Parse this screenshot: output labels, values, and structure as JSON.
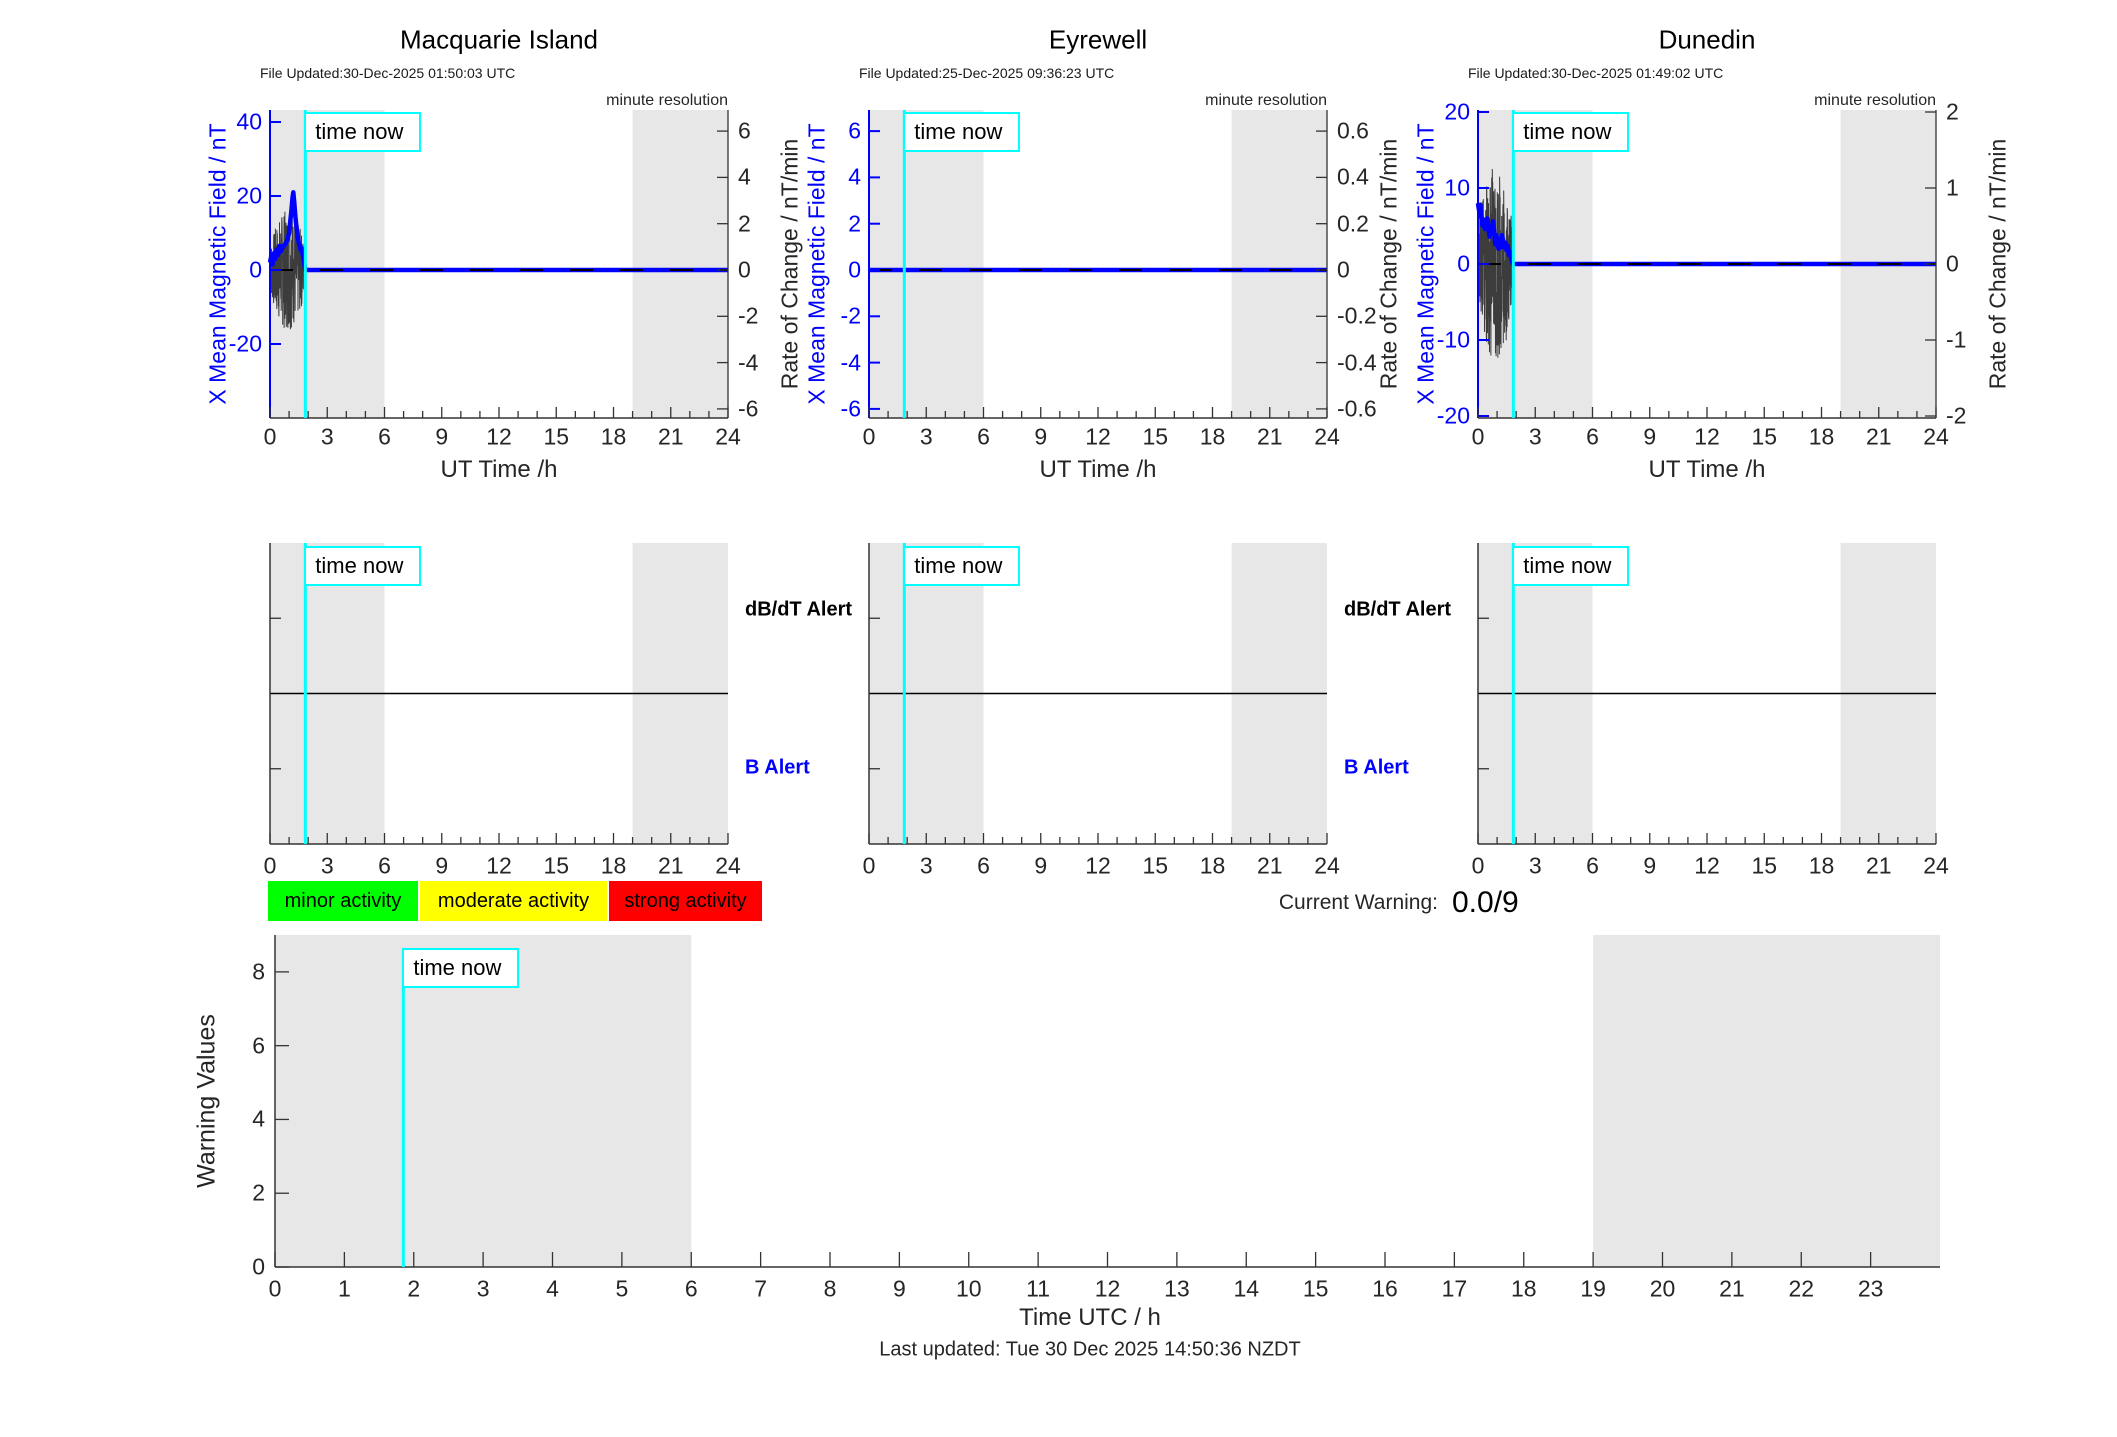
{
  "time_now": {
    "label": "time now",
    "hour": 1.85
  },
  "colors": {
    "accent_blue": "#0000ff",
    "cyan": "#00ffff",
    "band_gray": "#e7e7e7",
    "noise_gray": "#3c3c3c",
    "tick_text": "#262626",
    "black": "#000000",
    "minor_green": "#00ff00",
    "moderate_yellow": "#ffff00",
    "strong_red": "#ff0000"
  },
  "stations": [
    {
      "title": "Macquarie Island",
      "file_updated": "File Updated:30-Dec-2025 01:50:03 UTC",
      "resolution_note": "minute resolution",
      "left_axis": {
        "label": "X Mean Magnetic Field / nT",
        "ticks": [
          40,
          20,
          0,
          -20
        ]
      },
      "right_axis": {
        "label": "Rate of Change / nT/min",
        "ticks": [
          6,
          4,
          2,
          0,
          -2,
          -4,
          -6
        ]
      },
      "x_axis": {
        "label": "UT Time /h",
        "ticks": [
          0,
          3,
          6,
          9,
          12,
          15,
          18,
          21,
          24
        ]
      }
    },
    {
      "title": "Eyrewell",
      "file_updated": "File Updated:25-Dec-2025 09:36:23 UTC",
      "resolution_note": "minute resolution",
      "left_axis": {
        "label": "X Mean Magnetic Field / nT",
        "ticks": [
          6,
          4,
          2,
          0,
          -2,
          -4,
          -6
        ]
      },
      "right_axis": {
        "label": "Rate of Change / nT/min",
        "ticks": [
          0.6,
          0.4,
          0.2,
          0,
          -0.2,
          -0.4,
          -0.6
        ]
      },
      "x_axis": {
        "label": "UT Time /h",
        "ticks": [
          0,
          3,
          6,
          9,
          12,
          15,
          18,
          21,
          24
        ]
      }
    },
    {
      "title": "Dunedin",
      "file_updated": "File Updated:30-Dec-2025 01:49:02 UTC",
      "resolution_note": "minute resolution",
      "left_axis": {
        "label": "X Mean Magnetic Field / nT",
        "ticks": [
          20,
          10,
          0,
          -10,
          -20
        ]
      },
      "right_axis": {
        "label": "Rate of Change / nT/min",
        "ticks": [
          2,
          1,
          0,
          -1,
          -2
        ]
      },
      "x_axis": {
        "label": "UT Time /h",
        "ticks": [
          0,
          3,
          6,
          9,
          12,
          15,
          18,
          21,
          24
        ]
      }
    }
  ],
  "alert_row": {
    "db_dt_label": "dB/dT Alert",
    "b_label": "B Alert",
    "x_ticks": [
      0,
      3,
      6,
      9,
      12,
      15,
      18,
      21,
      24
    ]
  },
  "legend": [
    {
      "label": "minor activity",
      "color": "#00ff00"
    },
    {
      "label": "moderate activity",
      "color": "#ffff00"
    },
    {
      "label": "strong activity",
      "color": "#ff0000"
    }
  ],
  "current_warning": {
    "label": "Current Warning:",
    "value": "0.0/9"
  },
  "warning_panel": {
    "ylabel": "Warning Values",
    "xlabel": "Time UTC / h",
    "y_ticks": [
      0,
      2,
      4,
      6,
      8
    ],
    "x_ticks": [
      0,
      1,
      2,
      3,
      4,
      5,
      6,
      7,
      8,
      9,
      10,
      11,
      12,
      13,
      14,
      15,
      16,
      17,
      18,
      19,
      20,
      21,
      22,
      23
    ]
  },
  "footer": {
    "last_updated": "Last updated: Tue 30 Dec 2025 14:50:36 NZDT"
  },
  "chart_data": [
    {
      "id": "macquarie-field",
      "type": "line",
      "title": "Macquarie Island",
      "xlabel": "UT Time /h",
      "ylabel_left": "X Mean Magnetic Field / nT",
      "ylabel_right": "Rate of Change / nT/min",
      "xlim": [
        0,
        24
      ],
      "xticks": [
        0,
        3,
        6,
        9,
        12,
        15,
        18,
        21,
        24
      ],
      "left_ticks": [
        40,
        20,
        0,
        -20
      ],
      "right_ticks": [
        6,
        4,
        2,
        0,
        -2,
        -4,
        -6
      ],
      "shaded_bands": [
        [
          0,
          6
        ],
        [
          19,
          24
        ]
      ],
      "time_now_hour": 1.85,
      "series": [
        {
          "name": "X mean magnetic field (nT)",
          "color": "#0000ff",
          "points": [
            [
              0,
              2
            ],
            [
              0.08,
              4
            ],
            [
              0.13,
              1.5
            ],
            [
              0.2,
              4.5
            ],
            [
              0.28,
              3
            ],
            [
              0.34,
              5.5
            ],
            [
              0.42,
              4
            ],
            [
              0.5,
              6.5
            ],
            [
              0.57,
              5
            ],
            [
              0.64,
              6
            ],
            [
              0.72,
              6.5
            ],
            [
              0.8,
              7
            ],
            [
              0.9,
              8
            ],
            [
              1.0,
              10
            ],
            [
              1.06,
              13
            ],
            [
              1.12,
              16
            ],
            [
              1.18,
              19.5
            ],
            [
              1.22,
              21
            ],
            [
              1.27,
              18.5
            ],
            [
              1.32,
              15
            ],
            [
              1.38,
              12
            ],
            [
              1.44,
              9.5
            ],
            [
              1.5,
              7.5
            ],
            [
              1.56,
              6.5
            ],
            [
              1.6,
              5.5
            ],
            [
              1.66,
              6
            ],
            [
              1.7,
              4.5
            ],
            [
              1.76,
              3
            ],
            [
              1.82,
              1
            ],
            [
              1.85,
              0
            ],
            [
              24,
              0
            ]
          ]
        },
        {
          "name": "rate of change (nT/min)",
          "style": "noise",
          "color": "#3c3c3c",
          "amp_right_units": 2.6,
          "t_end": 1.85
        },
        {
          "name": "zero reference",
          "style": "dashed",
          "value": 0
        }
      ]
    },
    {
      "id": "eyrewell-field",
      "type": "line",
      "title": "Eyrewell",
      "xlabel": "UT Time /h",
      "ylabel_left": "X Mean Magnetic Field / nT",
      "ylabel_right": "Rate of Change / nT/min",
      "xlim": [
        0,
        24
      ],
      "xticks": [
        0,
        3,
        6,
        9,
        12,
        15,
        18,
        21,
        24
      ],
      "left_ticks": [
        6,
        4,
        2,
        0,
        -2,
        -4,
        -6
      ],
      "right_ticks": [
        0.6,
        0.4,
        0.2,
        0,
        -0.2,
        -0.4,
        -0.6
      ],
      "shaded_bands": [
        [
          0,
          6
        ],
        [
          19,
          24
        ]
      ],
      "time_now_hour": 1.85,
      "series": [
        {
          "name": "X mean magnetic field (nT)",
          "color": "#0000ff",
          "points": [
            [
              0,
              0
            ],
            [
              24,
              0
            ]
          ]
        },
        {
          "name": "zero reference",
          "style": "dashed",
          "value": 0
        }
      ]
    },
    {
      "id": "dunedin-field",
      "type": "line",
      "title": "Dunedin",
      "xlabel": "UT Time /h",
      "ylabel_left": "X Mean Magnetic Field / nT",
      "ylabel_right": "Rate of Change / nT/min",
      "xlim": [
        0,
        24
      ],
      "xticks": [
        0,
        3,
        6,
        9,
        12,
        15,
        18,
        21,
        24
      ],
      "left_ticks": [
        20,
        10,
        0,
        -10,
        -20
      ],
      "right_ticks": [
        2,
        1,
        0,
        -1,
        -2
      ],
      "shaded_bands": [
        [
          0,
          6
        ],
        [
          19,
          24
        ]
      ],
      "time_now_hour": 1.85,
      "series": [
        {
          "name": "X mean magnetic field (nT)",
          "color": "#0000ff",
          "points": [
            [
              0,
              8
            ],
            [
              0.06,
              7
            ],
            [
              0.12,
              7.8
            ],
            [
              0.18,
              6
            ],
            [
              0.24,
              5
            ],
            [
              0.3,
              5.8
            ],
            [
              0.36,
              4.6
            ],
            [
              0.42,
              5.4
            ],
            [
              0.48,
              6
            ],
            [
              0.54,
              4.8
            ],
            [
              0.6,
              3.6
            ],
            [
              0.66,
              4.8
            ],
            [
              0.72,
              4
            ],
            [
              0.78,
              5.6
            ],
            [
              0.84,
              4.6
            ],
            [
              0.9,
              2.6
            ],
            [
              0.96,
              3.8
            ],
            [
              1.02,
              3
            ],
            [
              1.08,
              2
            ],
            [
              1.14,
              3.2
            ],
            [
              1.2,
              2.2
            ],
            [
              1.26,
              3.8
            ],
            [
              1.32,
              3
            ],
            [
              1.38,
              2.2
            ],
            [
              1.44,
              2.8
            ],
            [
              1.5,
              1.8
            ],
            [
              1.56,
              2.4
            ],
            [
              1.62,
              1.2
            ],
            [
              1.68,
              1.6
            ],
            [
              1.74,
              0.8
            ],
            [
              1.8,
              0.2
            ],
            [
              1.85,
              0
            ],
            [
              24,
              0
            ]
          ]
        },
        {
          "name": "rate of change (nT/min)",
          "style": "noise",
          "color": "#3c3c3c",
          "amp_right_units": 1.3,
          "t_end": 1.85
        },
        {
          "name": "zero reference",
          "style": "dashed",
          "value": 0
        }
      ]
    },
    {
      "id": "macquarie-alerts",
      "type": "line",
      "xlim": [
        0,
        24
      ],
      "xticks": [
        0,
        3,
        6,
        9,
        12,
        15,
        18,
        21,
        24
      ],
      "shaded_bands": [
        [
          0,
          6
        ],
        [
          19,
          24
        ]
      ],
      "time_now_hour": 1.85,
      "labels": [
        "dB/dT Alert",
        "B Alert"
      ],
      "db_dt_alerts": [],
      "b_alerts": []
    },
    {
      "id": "eyrewell-alerts",
      "type": "line",
      "xlim": [
        0,
        24
      ],
      "xticks": [
        0,
        3,
        6,
        9,
        12,
        15,
        18,
        21,
        24
      ],
      "shaded_bands": [
        [
          0,
          6
        ],
        [
          19,
          24
        ]
      ],
      "time_now_hour": 1.85,
      "labels": [
        "dB/dT Alert",
        "B Alert"
      ],
      "db_dt_alerts": [],
      "b_alerts": []
    },
    {
      "id": "dunedin-alerts",
      "type": "line",
      "xlim": [
        0,
        24
      ],
      "xticks": [
        0,
        3,
        6,
        9,
        12,
        15,
        18,
        21,
        24
      ],
      "shaded_bands": [
        [
          0,
          6
        ],
        [
          19,
          24
        ]
      ],
      "time_now_hour": 1.85,
      "labels": [],
      "db_dt_alerts": [],
      "b_alerts": []
    },
    {
      "id": "warning-values",
      "type": "line",
      "ylabel": "Warning Values",
      "xlabel": "Time UTC / h",
      "ylim": [
        0,
        9
      ],
      "yticks": [
        0,
        2,
        4,
        6,
        8
      ],
      "xlim": [
        0,
        24
      ],
      "xticks": [
        0,
        1,
        2,
        3,
        4,
        5,
        6,
        7,
        8,
        9,
        10,
        11,
        12,
        13,
        14,
        15,
        16,
        17,
        18,
        19,
        20,
        21,
        22,
        23
      ],
      "shaded_bands": [
        [
          0,
          6
        ],
        [
          19,
          24
        ]
      ],
      "time_now_hour": 1.85,
      "current_warning_value": 0.0,
      "warning_max": 9,
      "series": []
    }
  ]
}
